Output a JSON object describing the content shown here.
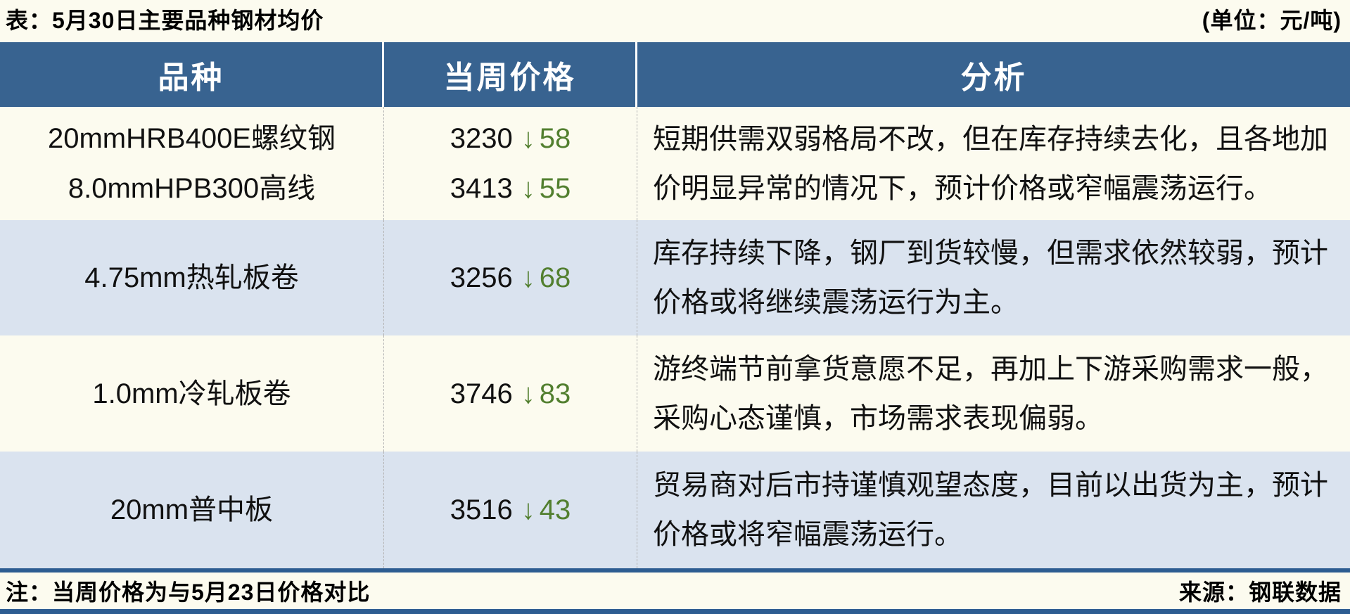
{
  "title": "表：5月30日主要品种钢材均价",
  "unit_label": "(单位：元/吨)",
  "colors": {
    "header_blue": "#386390",
    "row_alt_blue": "#DAE3EF",
    "row_cream": "#FCFBEF",
    "separator_blue": "#2D5C91",
    "decline_green": "#527F2F",
    "text_black": "#111111"
  },
  "table": {
    "headers": {
      "variety": "品种",
      "price": "当周价格",
      "analysis": "分析"
    },
    "rows": [
      {
        "varieties": [
          {
            "name": "20mmHRB400E螺纹钢",
            "price": "3230",
            "arrow": "↓",
            "change": "58"
          },
          {
            "name": "8.0mmHPB300高线",
            "price": "3413",
            "arrow": "↓",
            "change": "55"
          }
        ],
        "analysis": "短期供需双弱格局不改，但在库存持续去化，且各地加价明显异常的情况下，预计价格或窄幅震荡运行。"
      },
      {
        "varieties": [
          {
            "name": "4.75mm热轧板卷",
            "price": "3256",
            "arrow": "↓",
            "change": "68"
          }
        ],
        "analysis": "库存持续下降，钢厂到货较慢，但需求依然较弱，预计价格或将继续震荡运行为主。"
      },
      {
        "varieties": [
          {
            "name": "1.0mm冷轧板卷",
            "price": "3746",
            "arrow": "↓",
            "change": "83"
          }
        ],
        "analysis": "游终端节前拿货意愿不足，再加上下游采购需求一般，采购心态谨慎，市场需求表现偏弱。"
      },
      {
        "varieties": [
          {
            "name": "20mm普中板",
            "price": "3516",
            "arrow": "↓",
            "change": "43"
          }
        ],
        "analysis": "贸易商对后市持谨慎观望态度，目前以出货为主，预计价格或将窄幅震荡运行。"
      }
    ]
  },
  "footer": {
    "note": "注：当周价格为与5月23日价格对比",
    "source": "来源：钢联数据"
  }
}
